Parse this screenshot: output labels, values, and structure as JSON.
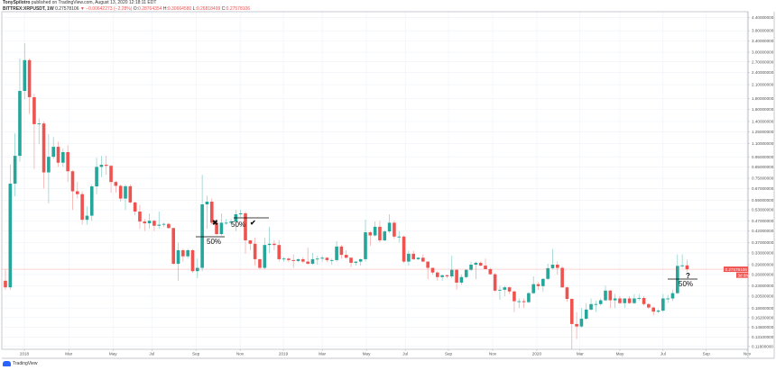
{
  "header": {
    "author": "TonySpilotro",
    "published": "published on TradingView.com, August 13, 2020 12:18:11 EDT",
    "symbol": "BITTREX:XRPUSDT, 1W",
    "last": "0.27578106",
    "change": "−0.00642273 (−2.28%)",
    "open_label": "O:",
    "open": "0.28764354",
    "high_label": "H:",
    "high": "0.30664580",
    "low_label": "L:",
    "low": "0.26818499",
    "close_label": "C:",
    "close": "0.27578106"
  },
  "colors": {
    "up": "#26a69a",
    "down": "#ef5350",
    "grid": "#eef1f7",
    "axis": "#b2b5be"
  },
  "price_tag": {
    "value": "0.27578106",
    "countdown": "3d 8h"
  },
  "footer": {
    "logo_text": "TradingView"
  },
  "chart_data": {
    "type": "candlestick",
    "title": "BITTREX:XRPUSDT, 1W",
    "yscale": "log",
    "ylim": [
      0.11,
      4.6
    ],
    "grid": true,
    "current_price": 0.27578106,
    "y_ticks": [
      "4.40000000",
      "3.80000000",
      "3.40000000",
      "3.00000000",
      "2.70000000",
      "2.40000000",
      "2.10000000",
      "1.80000000",
      "1.60000000",
      "1.40000000",
      "1.25000000",
      "1.10000000",
      "0.95000000",
      "0.85000000",
      "0.75000000",
      "0.67000000",
      "0.59000000",
      "0.53000000",
      "0.47000000",
      "0.42000000",
      "0.37000000",
      "0.33000000",
      "0.29000000",
      "0.26000000",
      "0.23000000",
      "0.20500000",
      "0.18000000",
      "0.16200000",
      "0.14600000",
      "0.13100000",
      "0.11800000"
    ],
    "x_ticks": [
      {
        "label": "2018",
        "week": 3.95
      },
      {
        "label": "Mar",
        "week": 13.2
      },
      {
        "label": "May",
        "week": 22.4
      },
      {
        "label": "Jul",
        "week": 30.5
      },
      {
        "label": "Sep",
        "week": 39.7
      },
      {
        "label": "Nov",
        "week": 48.9
      },
      {
        "label": "2019",
        "week": 57.9
      },
      {
        "label": "Mar",
        "week": 66
      },
      {
        "label": "May",
        "week": 75.2
      },
      {
        "label": "Jul",
        "week": 83.3
      },
      {
        "label": "Sep",
        "week": 92.3
      },
      {
        "label": "Nov",
        "week": 101.5
      },
      {
        "label": "2020",
        "week": 110.7
      },
      {
        "label": "Mar",
        "week": 119.7
      },
      {
        "label": "May",
        "week": 128
      },
      {
        "label": "Jul",
        "week": 137
      },
      {
        "label": "Sep",
        "week": 146
      },
      {
        "label": "Nov",
        "week": 154.5
      }
    ],
    "ohlc_columns": [
      "open",
      "high",
      "low",
      "close"
    ],
    "ohlc": [
      [
        0.243,
        0.276,
        0.22,
        0.226
      ],
      [
        0.226,
        0.87,
        0.22,
        0.707
      ],
      [
        0.707,
        1.23,
        0.615,
        0.96
      ],
      [
        0.96,
        2.8,
        0.9,
        1.96
      ],
      [
        1.96,
        3.31,
        1.79,
        2.75
      ],
      [
        2.75,
        2.8,
        1.52,
        1.83
      ],
      [
        1.83,
        1.9,
        0.83,
        1.36
      ],
      [
        1.36,
        1.45,
        1.09,
        1.37
      ],
      [
        1.37,
        1.4,
        0.67,
        0.8
      ],
      [
        0.8,
        1.22,
        0.57,
        0.95
      ],
      [
        0.95,
        1.18,
        0.93,
        1.06
      ],
      [
        1.06,
        1.12,
        0.85,
        0.89
      ],
      [
        0.89,
        1.04,
        0.85,
        1.0
      ],
      [
        1.0,
        1.08,
        0.72,
        0.81
      ],
      [
        0.81,
        0.82,
        0.53,
        0.65
      ],
      [
        0.65,
        0.72,
        0.6,
        0.63
      ],
      [
        0.63,
        0.65,
        0.45,
        0.475
      ],
      [
        0.475,
        0.55,
        0.45,
        0.497
      ],
      [
        0.497,
        0.7,
        0.47,
        0.686
      ],
      [
        0.686,
        0.94,
        0.63,
        0.85
      ],
      [
        0.85,
        0.96,
        0.76,
        0.87
      ],
      [
        0.87,
        0.96,
        0.78,
        0.86
      ],
      [
        0.86,
        0.87,
        0.64,
        0.72
      ],
      [
        0.72,
        0.73,
        0.64,
        0.69
      ],
      [
        0.69,
        0.7,
        0.58,
        0.6
      ],
      [
        0.6,
        0.7,
        0.53,
        0.687
      ],
      [
        0.687,
        0.7,
        0.57,
        0.575
      ],
      [
        0.575,
        0.58,
        0.5,
        0.52
      ],
      [
        0.52,
        0.56,
        0.43,
        0.466
      ],
      [
        0.466,
        0.48,
        0.42,
        0.457
      ],
      [
        0.457,
        0.51,
        0.43,
        0.47
      ],
      [
        0.47,
        0.475,
        0.42,
        0.445
      ],
      [
        0.445,
        0.52,
        0.43,
        0.45
      ],
      [
        0.45,
        0.46,
        0.44,
        0.454
      ],
      [
        0.454,
        0.46,
        0.43,
        0.434
      ],
      [
        0.434,
        0.434,
        0.29,
        0.293
      ],
      [
        0.293,
        0.37,
        0.243,
        0.34
      ],
      [
        0.34,
        0.345,
        0.3,
        0.318
      ],
      [
        0.318,
        0.345,
        0.31,
        0.34
      ],
      [
        0.34,
        0.345,
        0.265,
        0.27
      ],
      [
        0.27,
        0.31,
        0.25,
        0.28
      ],
      [
        0.28,
        0.78,
        0.27,
        0.563
      ],
      [
        0.563,
        0.62,
        0.43,
        0.58
      ],
      [
        0.58,
        0.6,
        0.45,
        0.46
      ],
      [
        0.46,
        0.48,
        0.4,
        0.406
      ],
      [
        0.406,
        0.51,
        0.4,
        0.46
      ],
      [
        0.46,
        0.48,
        0.45,
        0.46
      ],
      [
        0.46,
        0.48,
        0.45,
        0.466
      ],
      [
        0.466,
        0.53,
        0.42,
        0.505
      ],
      [
        0.505,
        0.53,
        0.49,
        0.51
      ],
      [
        0.51,
        0.52,
        0.327,
        0.379
      ],
      [
        0.379,
        0.38,
        0.34,
        0.365
      ],
      [
        0.365,
        0.39,
        0.287,
        0.308
      ],
      [
        0.308,
        0.31,
        0.276,
        0.28
      ],
      [
        0.28,
        0.39,
        0.276,
        0.36
      ],
      [
        0.36,
        0.44,
        0.33,
        0.365
      ],
      [
        0.365,
        0.38,
        0.34,
        0.36
      ],
      [
        0.36,
        0.38,
        0.3,
        0.308
      ],
      [
        0.308,
        0.315,
        0.3,
        0.31
      ],
      [
        0.31,
        0.315,
        0.298,
        0.305
      ],
      [
        0.305,
        0.325,
        0.28,
        0.302
      ],
      [
        0.302,
        0.31,
        0.298,
        0.308
      ],
      [
        0.308,
        0.315,
        0.295,
        0.3
      ],
      [
        0.3,
        0.35,
        0.29,
        0.293
      ],
      [
        0.293,
        0.33,
        0.29,
        0.308
      ],
      [
        0.308,
        0.32,
        0.29,
        0.31
      ],
      [
        0.31,
        0.32,
        0.3,
        0.313
      ],
      [
        0.313,
        0.315,
        0.298,
        0.305
      ],
      [
        0.305,
        0.31,
        0.29,
        0.305
      ],
      [
        0.305,
        0.376,
        0.3,
        0.354
      ],
      [
        0.354,
        0.36,
        0.31,
        0.323
      ],
      [
        0.323,
        0.34,
        0.31,
        0.313
      ],
      [
        0.313,
        0.315,
        0.282,
        0.296
      ],
      [
        0.296,
        0.3,
        0.287,
        0.3
      ],
      [
        0.3,
        0.31,
        0.287,
        0.308
      ],
      [
        0.308,
        0.475,
        0.3,
        0.414
      ],
      [
        0.414,
        0.42,
        0.357,
        0.4
      ],
      [
        0.4,
        0.467,
        0.395,
        0.44
      ],
      [
        0.44,
        0.47,
        0.37,
        0.379
      ],
      [
        0.379,
        0.425,
        0.375,
        0.418
      ],
      [
        0.418,
        0.505,
        0.41,
        0.46
      ],
      [
        0.46,
        0.47,
        0.385,
        0.395
      ],
      [
        0.395,
        0.42,
        0.37,
        0.395
      ],
      [
        0.395,
        0.4,
        0.295,
        0.3
      ],
      [
        0.3,
        0.338,
        0.287,
        0.327
      ],
      [
        0.327,
        0.338,
        0.305,
        0.308
      ],
      [
        0.308,
        0.315,
        0.305,
        0.313
      ],
      [
        0.313,
        0.325,
        0.298,
        0.3
      ],
      [
        0.3,
        0.3,
        0.247,
        0.28
      ],
      [
        0.28,
        0.28,
        0.26,
        0.266
      ],
      [
        0.266,
        0.27,
        0.243,
        0.253
      ],
      [
        0.253,
        0.26,
        0.243,
        0.258
      ],
      [
        0.258,
        0.26,
        0.25,
        0.255
      ],
      [
        0.255,
        0.32,
        0.25,
        0.274
      ],
      [
        0.274,
        0.276,
        0.22,
        0.238
      ],
      [
        0.238,
        0.26,
        0.232,
        0.253
      ],
      [
        0.253,
        0.276,
        0.25,
        0.274
      ],
      [
        0.274,
        0.3,
        0.27,
        0.29
      ],
      [
        0.29,
        0.3,
        0.247,
        0.296
      ],
      [
        0.296,
        0.3,
        0.285,
        0.287
      ],
      [
        0.287,
        0.31,
        0.28,
        0.276
      ],
      [
        0.276,
        0.28,
        0.26,
        0.261
      ],
      [
        0.261,
        0.265,
        0.215,
        0.218
      ],
      [
        0.218,
        0.23,
        0.197,
        0.22
      ],
      [
        0.22,
        0.23,
        0.205,
        0.226
      ],
      [
        0.226,
        0.228,
        0.21,
        0.216
      ],
      [
        0.216,
        0.218,
        0.172,
        0.194
      ],
      [
        0.194,
        0.2,
        0.18,
        0.194
      ],
      [
        0.194,
        0.2,
        0.18,
        0.192
      ],
      [
        0.192,
        0.215,
        0.19,
        0.212
      ],
      [
        0.212,
        0.255,
        0.21,
        0.234
      ],
      [
        0.234,
        0.24,
        0.22,
        0.229
      ],
      [
        0.229,
        0.25,
        0.215,
        0.248
      ],
      [
        0.248,
        0.293,
        0.245,
        0.279
      ],
      [
        0.279,
        0.344,
        0.275,
        0.29
      ],
      [
        0.29,
        0.3,
        0.26,
        0.28
      ],
      [
        0.28,
        0.285,
        0.225,
        0.226
      ],
      [
        0.226,
        0.228,
        0.193,
        0.199
      ],
      [
        0.199,
        0.2,
        0.114,
        0.151
      ],
      [
        0.151,
        0.172,
        0.128,
        0.147
      ],
      [
        0.147,
        0.18,
        0.145,
        0.16
      ],
      [
        0.16,
        0.19,
        0.158,
        0.177
      ],
      [
        0.177,
        0.2,
        0.175,
        0.188
      ],
      [
        0.188,
        0.195,
        0.172,
        0.1881
      ],
      [
        0.188,
        0.2,
        0.185,
        0.196
      ],
      [
        0.196,
        0.23,
        0.194,
        0.218
      ],
      [
        0.218,
        0.22,
        0.18,
        0.196
      ],
      [
        0.196,
        0.21,
        0.18,
        0.2
      ],
      [
        0.2,
        0.205,
        0.188,
        0.19
      ],
      [
        0.19,
        0.2,
        0.18,
        0.2
      ],
      [
        0.2,
        0.205,
        0.188,
        0.19
      ],
      [
        0.19,
        0.21,
        0.188,
        0.2
      ],
      [
        0.2,
        0.21,
        0.195,
        0.201
      ],
      [
        0.201,
        0.205,
        0.185,
        0.188
      ],
      [
        0.188,
        0.19,
        0.178,
        0.181
      ],
      [
        0.181,
        0.183,
        0.166,
        0.173
      ],
      [
        0.173,
        0.178,
        0.17,
        0.175
      ],
      [
        0.175,
        0.21,
        0.172,
        0.2
      ],
      [
        0.2,
        0.208,
        0.19,
        0.2
      ],
      [
        0.2,
        0.22,
        0.195,
        0.212
      ],
      [
        0.212,
        0.325,
        0.21,
        0.286
      ],
      [
        0.286,
        0.325,
        0.28,
        0.2876
      ],
      [
        0.28764354,
        0.3066458,
        0.26818499,
        0.27578106
      ]
    ],
    "annotations": [
      {
        "text": "50%",
        "marker": "cross",
        "week": 42.7
      },
      {
        "text": "50%",
        "marker": "check",
        "week": 51
      },
      {
        "text": "?",
        "sub": "50%",
        "week": 142
      }
    ]
  }
}
